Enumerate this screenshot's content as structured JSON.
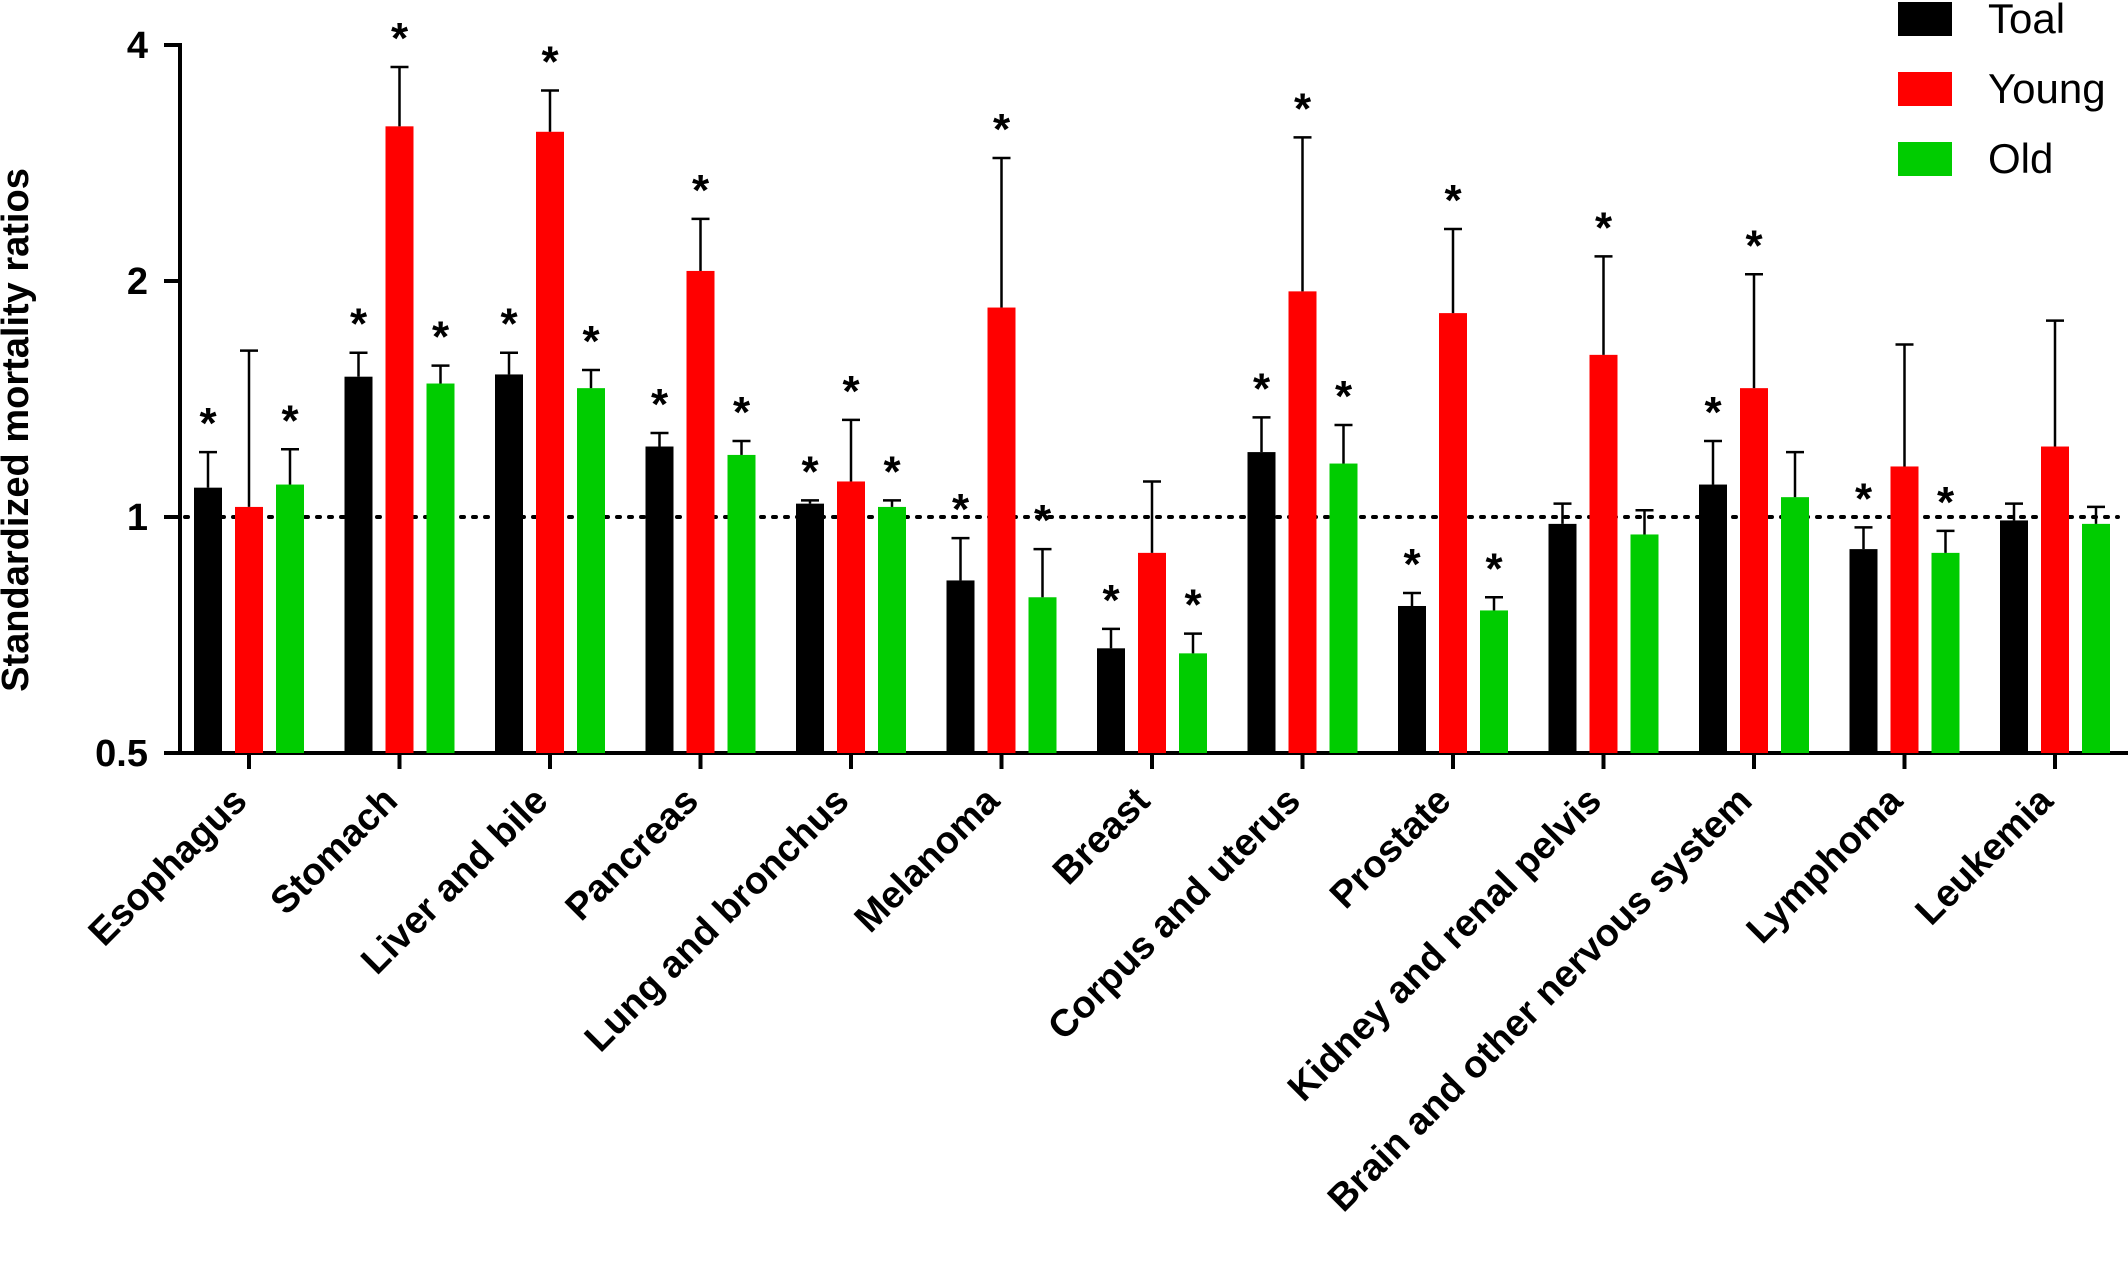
{
  "chart_data": {
    "type": "bar",
    "title": "",
    "ylabel": "Standardized mortality ratios",
    "xlabel": "",
    "y_scale": "log2",
    "ylim": [
      0.5,
      4
    ],
    "y_ticks": [
      {
        "value": 0.5,
        "label": "0.5"
      },
      {
        "value": 1,
        "label": "1"
      },
      {
        "value": 2,
        "label": "2"
      },
      {
        "value": 4,
        "label": "4"
      }
    ],
    "reference_line": {
      "value": 1,
      "style": "dotted"
    },
    "significance_marker": "*",
    "legend_position": "top-right",
    "categories": [
      "Esophagus",
      "Stomach",
      "Liver and bile",
      "Pancreas",
      "Lung and bronchus",
      "Melanoma",
      "Breast",
      "Corpus and uterus",
      "Prostate",
      "Kidney and renal pelvis",
      "Brain and other nervous system",
      "Lymphoma",
      "Leukemia"
    ],
    "series": [
      {
        "name": "Toal",
        "color": "#000000",
        "values": [
          1.09,
          1.51,
          1.52,
          1.23,
          1.04,
          0.83,
          0.68,
          1.21,
          0.77,
          0.98,
          1.1,
          0.91,
          0.99
        ],
        "error_upper": [
          1.21,
          1.62,
          1.62,
          1.28,
          1.05,
          0.94,
          0.72,
          1.34,
          0.8,
          1.04,
          1.25,
          0.97,
          1.04
        ],
        "significant": [
          true,
          true,
          true,
          true,
          true,
          true,
          true,
          true,
          true,
          false,
          true,
          true,
          false
        ]
      },
      {
        "name": "Young",
        "color": "#ff0000",
        "values": [
          1.03,
          3.15,
          3.1,
          2.06,
          1.11,
          1.85,
          0.9,
          1.94,
          1.82,
          1.61,
          1.46,
          1.16,
          1.23
        ],
        "error_upper": [
          1.63,
          3.75,
          3.5,
          2.4,
          1.33,
          2.87,
          1.11,
          3.05,
          2.33,
          2.15,
          2.04,
          1.66,
          1.78
        ],
        "significant": [
          false,
          true,
          true,
          true,
          true,
          true,
          false,
          true,
          true,
          true,
          true,
          false,
          false
        ]
      },
      {
        "name": "Old",
        "color": "#00cc00",
        "values": [
          1.1,
          1.48,
          1.46,
          1.2,
          1.03,
          0.79,
          0.67,
          1.17,
          0.76,
          0.95,
          1.06,
          0.9,
          0.98
        ],
        "error_upper": [
          1.22,
          1.56,
          1.54,
          1.25,
          1.05,
          0.91,
          0.71,
          1.31,
          0.79,
          1.02,
          1.21,
          0.96,
          1.03
        ],
        "significant": [
          true,
          true,
          true,
          true,
          true,
          true,
          true,
          true,
          true,
          false,
          false,
          true,
          false
        ]
      }
    ]
  }
}
